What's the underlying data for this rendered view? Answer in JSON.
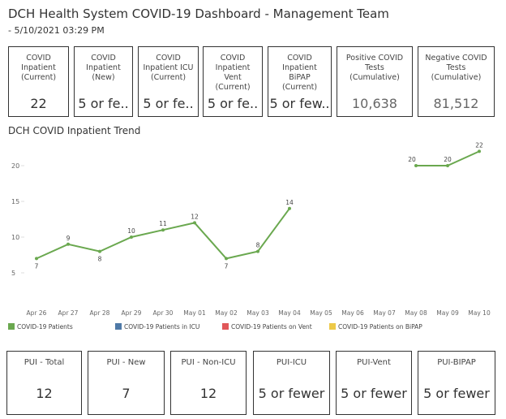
{
  "header": {
    "title": "DCH Health System COVID-19 Dashboard - Management Team",
    "subtitle": "- 5/10/2021 03:29 PM"
  },
  "kpis": [
    {
      "label": "COVID Inpatient (Current)",
      "value": "22"
    },
    {
      "label": "COVID Inpatient (New)",
      "value": "5 or fe.."
    },
    {
      "label": "COVID Inpatient ICU (Current)",
      "value": "5 or fe.."
    },
    {
      "label": "COVID Inpatient Vent (Current)",
      "value": "5 or fe.."
    },
    {
      "label": "COVID Inpatient BiPAP (Current)",
      "value": "5 or few.."
    },
    {
      "label": "Positive COVID Tests (Cumulative)",
      "value": "10,638"
    },
    {
      "label": "Negative COVID Tests (Cumulative)",
      "value": "81,512"
    }
  ],
  "chart_data": {
    "type": "line",
    "title": "DCH COVID Inpatient Trend",
    "categories": [
      "Apr 26",
      "Apr 27",
      "Apr 28",
      "Apr 29",
      "Apr 30",
      "May 01",
      "May 02",
      "May 03",
      "May 04",
      "May 05",
      "May 06",
      "May 07",
      "May 08",
      "May 09",
      "May 10"
    ],
    "series": [
      {
        "name": "COVID-19 Patients",
        "color": "#6aa84f",
        "values": [
          7,
          9,
          8,
          10,
          11,
          12,
          7,
          8,
          14,
          null,
          null,
          null,
          20,
          20,
          22
        ]
      },
      {
        "name": "COVID-19 Patients in ICU",
        "color": "#4e79a7",
        "values": [
          null,
          null,
          null,
          null,
          null,
          null,
          null,
          null,
          null,
          null,
          null,
          null,
          null,
          null,
          null
        ]
      },
      {
        "name": "COVID-19 Patients on Vent",
        "color": "#e15759",
        "values": [
          null,
          null,
          null,
          null,
          null,
          null,
          null,
          null,
          null,
          null,
          null,
          null,
          null,
          null,
          null
        ]
      },
      {
        "name": "COVID-19 Patients on BiPAP",
        "color": "#edc948",
        "values": [
          null,
          null,
          null,
          null,
          null,
          null,
          null,
          null,
          null,
          null,
          null,
          null,
          null,
          null,
          null
        ]
      }
    ],
    "ylim": [
      1,
      23
    ],
    "yticks": [
      5,
      10,
      15,
      20
    ],
    "legend": "bottom"
  },
  "pui": [
    {
      "label": "PUI - Total",
      "value": "12"
    },
    {
      "label": "PUI - New",
      "value": "7"
    },
    {
      "label": "PUI - Non-ICU",
      "value": "12"
    },
    {
      "label": "PUI-ICU",
      "value": "5 or fewer"
    },
    {
      "label": "PUI-Vent",
      "value": "5 or fewer"
    },
    {
      "label": "PUI-BIPAP",
      "value": "5 or fewer"
    }
  ]
}
